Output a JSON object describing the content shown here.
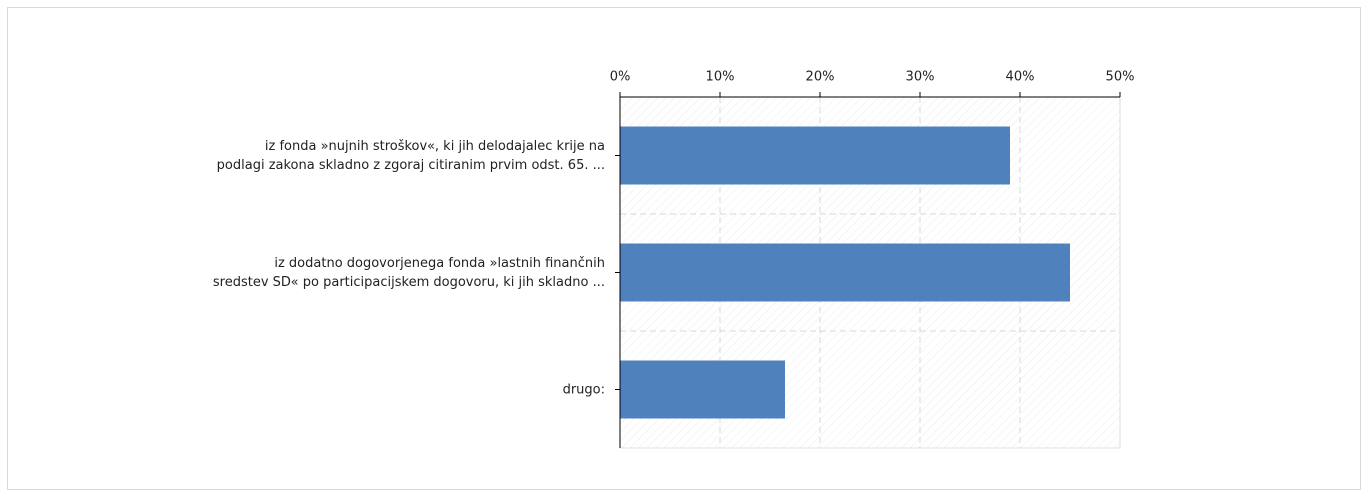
{
  "chart_data": {
    "type": "hbar",
    "categories": [
      [
        "iz fonda »nujnih stroškov«, ki jih delodajalec krije na",
        "podlagi zakona skladno z zgoraj citiranim prvim odst. 65. ..."
      ],
      [
        "iz dodatno dogovorjenega fonda »lastnih finančnih",
        "sredstev SD« po participacijskem dogovoru, ki jih skladno ..."
      ],
      [
        "drugo:"
      ]
    ],
    "values": [
      39,
      45,
      16.5
    ],
    "color": "#4f81bd",
    "xlim": [
      0,
      50
    ],
    "xticks": [
      {
        "value": 0,
        "label": "0%"
      },
      {
        "value": 10,
        "label": "10%"
      },
      {
        "value": 20,
        "label": "20%"
      },
      {
        "value": 30,
        "label": "30%"
      },
      {
        "value": 40,
        "label": "40%"
      },
      {
        "value": 50,
        "label": "50%"
      }
    ],
    "grid": true
  }
}
